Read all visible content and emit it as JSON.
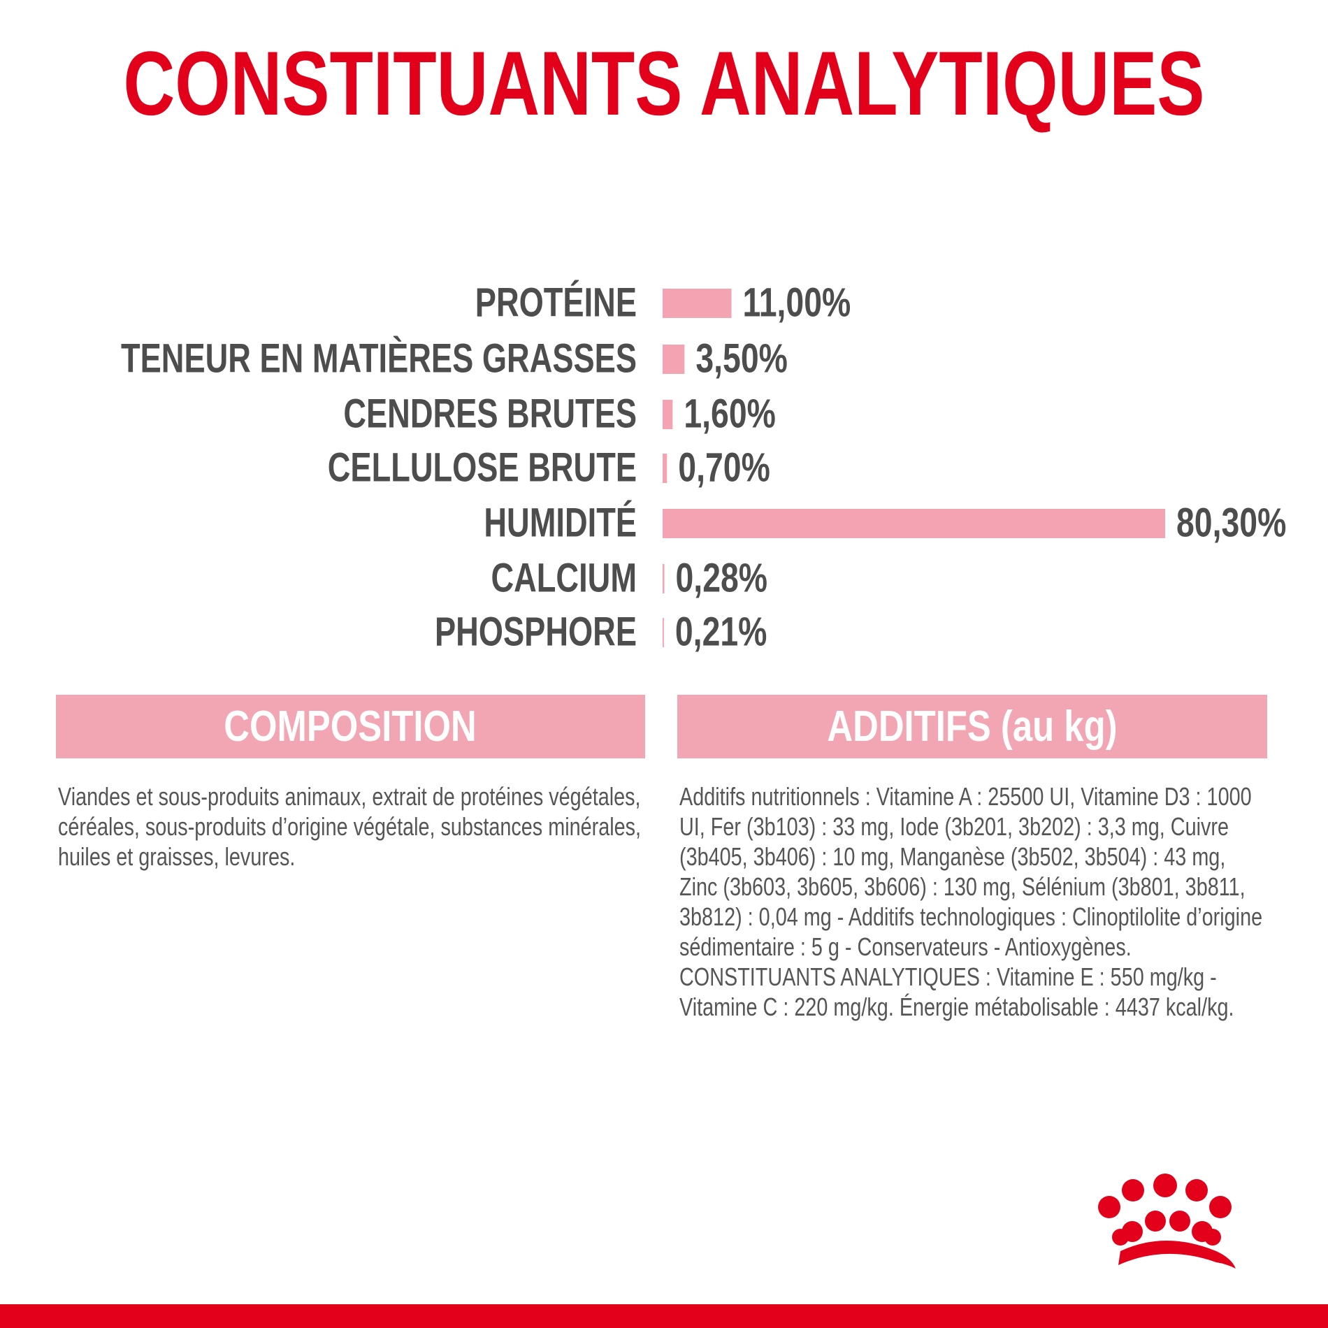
{
  "title": "CONSTITUANTS ANALYTIQUES",
  "chart_data": {
    "type": "bar",
    "orientation": "horizontal",
    "categories": [
      "PROTÉINE",
      "TENEUR EN MATIÈRES GRASSES",
      "CENDRES BRUTES",
      "CELLULOSE BRUTE",
      "HUMIDITÉ",
      "CALCIUM",
      "PHOSPHORE"
    ],
    "values": [
      11,
      3.5,
      1.6,
      0.7,
      80.3,
      0.28,
      0.21
    ],
    "value_labels": [
      "11,00%",
      "3,50%",
      "1,60%",
      "0,70%",
      "80,30%",
      "0,28%",
      "0,21%"
    ],
    "color": "#f4a3b3"
  },
  "composition": {
    "title": "COMPOSITION",
    "text": "Viandes et sous-produits animaux, extrait de protéines végétales, céréales, sous-produits d’origine végétale, substances minérales, huiles et graisses, levures."
  },
  "additifs": {
    "title": "ADDITIFS (au kg)",
    "text": "Additifs nutritionnels : Vitamine A : 25500 UI, Vitamine D3 : 1000 UI, Fer (3b103) : 33 mg, Iode (3b201, 3b202) : 3,3 mg, Cuivre (3b405, 3b406) : 10 mg, Manganèse (3b502, 3b504) : 43 mg, Zinc (3b603, 3b605, 3b606) : 130 mg, Sélénium (3b801, 3b811, 3b812) : 0,04 mg - Additifs technologiques : Clinoptilolite d’origine sédimentaire : 5 g - Conservateurs - Antioxygènes. CONSTITUANTS ANALYTIQUES : Vitamine E : 550 mg/kg - Vitamine C : 220 mg/kg. Énergie métabolisable : 4437 kcal/kg."
  }
}
